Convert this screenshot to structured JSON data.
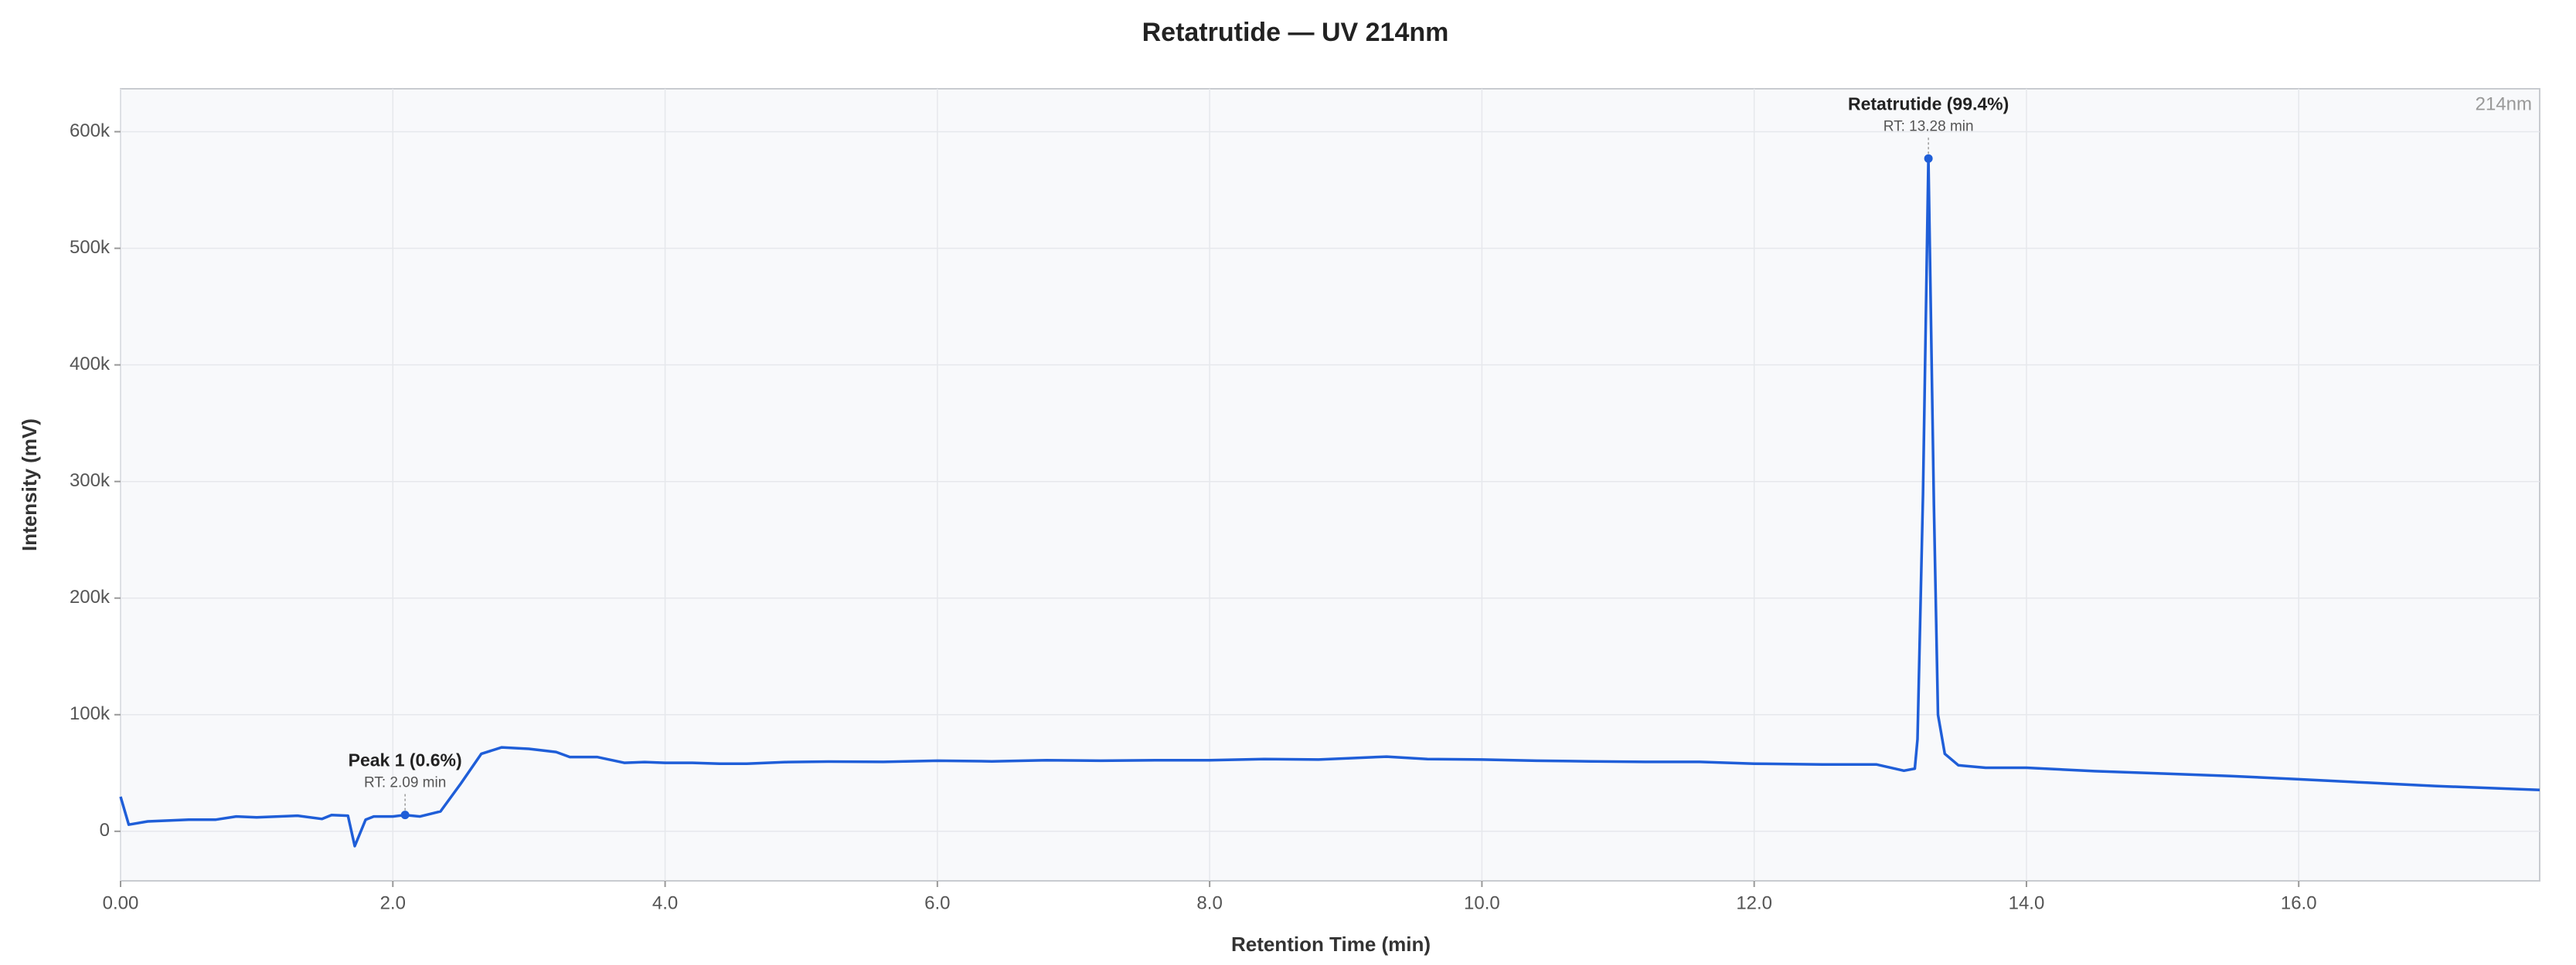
{
  "chart_data": {
    "type": "line",
    "title": "Retatrutide — UV 214nm",
    "x_label": "Retention Time (min)",
    "y_label": "Intensity (mV)",
    "corner_label": "214nm",
    "grid": true,
    "xlim": [
      0,
      17.77
    ],
    "ylim": [
      -42500,
      636800
    ],
    "xticks": [
      {
        "value": 0,
        "label": "0.00"
      },
      {
        "value": 2,
        "label": "2.0"
      },
      {
        "value": 4,
        "label": "4.0"
      },
      {
        "value": 6,
        "label": "6.0"
      },
      {
        "value": 8,
        "label": "8.0"
      },
      {
        "value": 10,
        "label": "10.0"
      },
      {
        "value": 12,
        "label": "12.0"
      },
      {
        "value": 14,
        "label": "14.0"
      },
      {
        "value": 16,
        "label": "16.0"
      }
    ],
    "yticks": [
      0,
      {
        "value": 100000,
        "label": "100k"
      },
      {
        "value": 200000,
        "label": "200k"
      },
      {
        "value": 300000,
        "label": "300k"
      },
      {
        "value": 400000,
        "label": "400k"
      },
      {
        "value": 500000,
        "label": "500k"
      },
      {
        "value": 600000,
        "label": "600k"
      }
    ],
    "series": [
      {
        "name": "UV 214nm",
        "color": "#1f5ed8",
        "x": [
          0,
          0.06,
          0.2,
          0.5,
          0.7,
          0.85,
          1.0,
          1.3,
          1.48,
          1.55,
          1.67,
          1.72,
          1.8,
          1.86,
          2.0,
          2.09,
          2.2,
          2.35,
          2.5,
          2.65,
          2.8,
          3.0,
          3.2,
          3.3,
          3.5,
          3.7,
          3.85,
          4.0,
          4.2,
          4.4,
          4.6,
          4.9,
          5.2,
          5.6,
          6.0,
          6.4,
          6.8,
          7.2,
          7.6,
          8.0,
          8.4,
          8.8,
          9.0,
          9.3,
          9.6,
          10.0,
          10.4,
          10.8,
          11.2,
          11.6,
          12.0,
          12.5,
          12.9,
          13.1,
          13.18,
          13.2,
          13.24,
          13.28,
          13.32,
          13.35,
          13.4,
          13.5,
          13.7,
          14.0,
          14.5,
          15.0,
          15.5,
          16.0,
          16.5,
          17.0,
          17.77
        ],
        "values": [
          29700,
          5700,
          8500,
          10000,
          10000,
          12700,
          12000,
          13400,
          10600,
          14000,
          13400,
          -12700,
          10000,
          12700,
          12700,
          14000,
          12700,
          17000,
          41000,
          66500,
          72000,
          70700,
          68000,
          63700,
          63700,
          58700,
          59400,
          58700,
          58700,
          58000,
          58000,
          59400,
          59800,
          59500,
          60500,
          60000,
          61000,
          60500,
          61000,
          61000,
          62000,
          61500,
          62500,
          64000,
          62000,
          61500,
          60500,
          60000,
          59500,
          59500,
          58000,
          57300,
          57300,
          52000,
          53800,
          79000,
          289000,
          577000,
          280000,
          100000,
          66500,
          56600,
          54500,
          54500,
          51600,
          49500,
          47400,
          44600,
          41700,
          38900,
          35400
        ]
      }
    ],
    "annotations": [
      {
        "label": "Peak 1 (0.6%)",
        "sublabel": "RT: 2.09 min",
        "x": 2.09,
        "y": 14000
      },
      {
        "label": "Retatrutide (99.4%)",
        "sublabel": "RT: 13.28 min",
        "x": 13.28,
        "y": 577000
      }
    ]
  }
}
